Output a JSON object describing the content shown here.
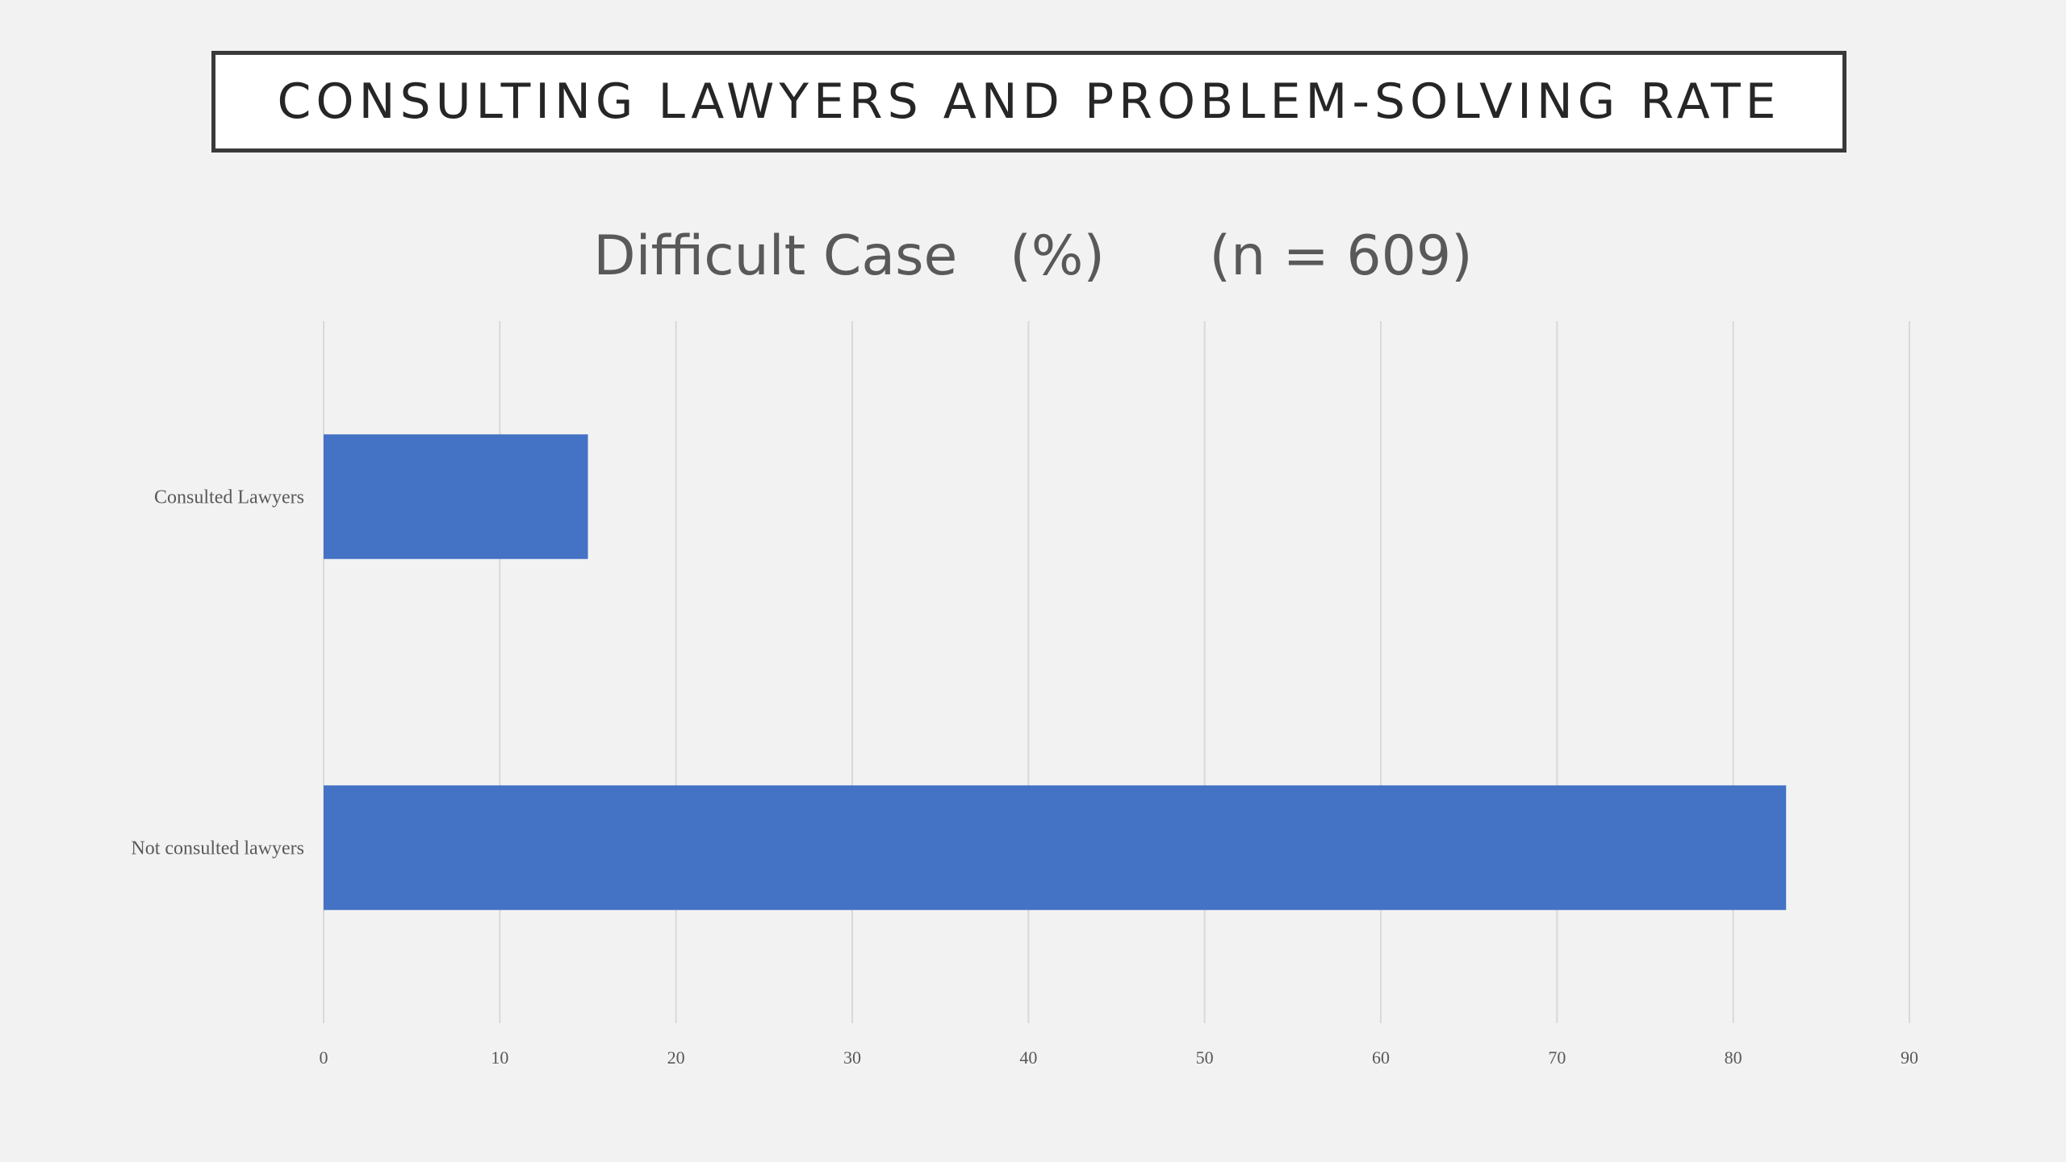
{
  "slide": {
    "title": "CONSULTING LAWYERS AND PROBLEM-SOLVING RATE"
  },
  "chart_data": {
    "type": "bar",
    "orientation": "horizontal",
    "title": "Difficult Case   (%)      (n = 609)",
    "categories": [
      "Consulted Lawyers",
      "Not consulted lawyers"
    ],
    "values": [
      15,
      83
    ],
    "xlim": [
      0,
      90
    ],
    "xticks": [
      0,
      10,
      20,
      30,
      40,
      50,
      60,
      70,
      80,
      90
    ],
    "grid": true,
    "legend": "none",
    "bar_color": "#4472c4",
    "grid_color": "#d9d9d9"
  }
}
